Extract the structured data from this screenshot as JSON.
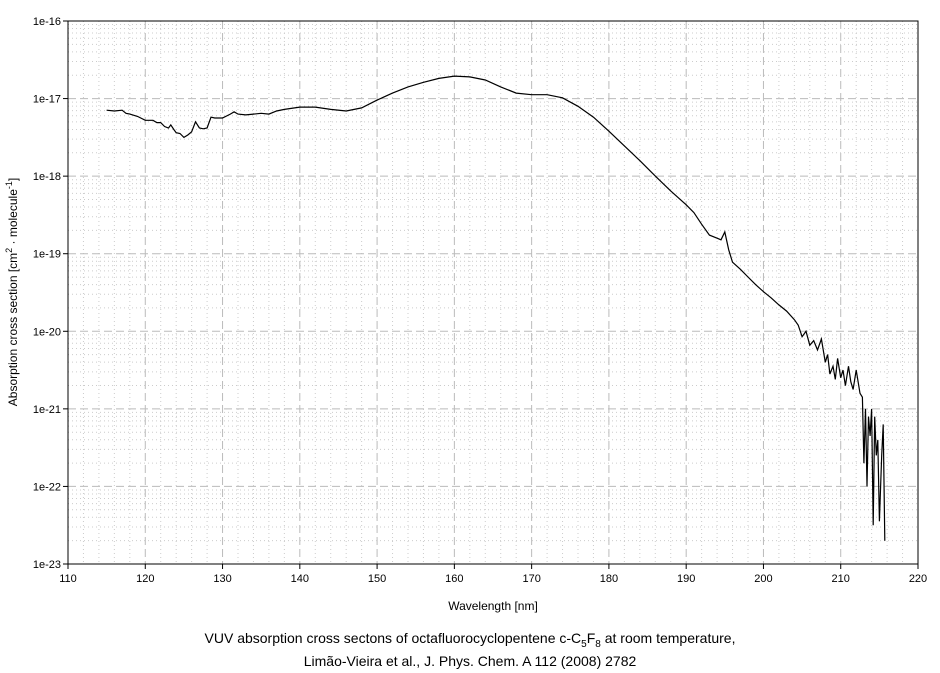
{
  "chart_data": {
    "type": "line",
    "xlabel": "Wavelength [nm]",
    "ylabel": "Absorption cross section [cm² · molecule⁻¹]",
    "ylabel_main": "Absorption cross section [cm",
    "ylabel_mid": " · molecule",
    "ylabel_end": "]",
    "xlim": [
      110,
      220
    ],
    "ylim_log10": [
      -23,
      -16
    ],
    "yscale": "log",
    "grid": true,
    "xticks": [
      "110",
      "120",
      "130",
      "140",
      "150",
      "160",
      "170",
      "180",
      "190",
      "200",
      "210",
      "220"
    ],
    "yticks": [
      "1e-16",
      "1e-17",
      "1e-18",
      "1e-19",
      "1e-20",
      "1e-21",
      "1e-22",
      "1e-23"
    ],
    "series": [
      {
        "name": "c-C5F8",
        "x": [
          115,
          116,
          117,
          117.5,
          118,
          119,
          120,
          121,
          121.5,
          122,
          122.5,
          123,
          123.3,
          123.7,
          124,
          124.5,
          125,
          125.5,
          126,
          126.5,
          127,
          127.5,
          128,
          128.5,
          129,
          130,
          131,
          131.5,
          132,
          133,
          134,
          135,
          136,
          137,
          138,
          140,
          142,
          144,
          146,
          148,
          150,
          152,
          154,
          156,
          158,
          160,
          162,
          164,
          166,
          168,
          170,
          172,
          174,
          176,
          178,
          180,
          182,
          184,
          186,
          188,
          190,
          191,
          192,
          193,
          194,
          194.5,
          195,
          195.5,
          196,
          197,
          198,
          199,
          200,
          201,
          202,
          203,
          204,
          204.5,
          205,
          205.5,
          206,
          206.5,
          207,
          207.5,
          208,
          208.3,
          208.6,
          209,
          209.3,
          209.6,
          210,
          210.3,
          210.6,
          211,
          211.3,
          211.6,
          212,
          212.5,
          212.8,
          213,
          213.2,
          213.4,
          213.6,
          213.8,
          214,
          214.2,
          214.4,
          214.6,
          214.8,
          215,
          215.3,
          215.5,
          215.7
        ],
        "log10_values": [
          -17.15,
          -17.16,
          -17.15,
          -17.19,
          -17.2,
          -17.23,
          -17.28,
          -17.28,
          -17.31,
          -17.31,
          -17.36,
          -17.38,
          -17.34,
          -17.4,
          -17.44,
          -17.45,
          -17.5,
          -17.47,
          -17.43,
          -17.3,
          -17.38,
          -17.39,
          -17.38,
          -17.24,
          -17.25,
          -17.25,
          -17.2,
          -17.17,
          -17.2,
          -17.21,
          -17.2,
          -17.19,
          -17.2,
          -17.16,
          -17.14,
          -17.11,
          -17.11,
          -17.14,
          -17.16,
          -17.12,
          -17.02,
          -16.93,
          -16.85,
          -16.79,
          -16.74,
          -16.71,
          -16.72,
          -16.76,
          -16.85,
          -16.93,
          -16.95,
          -16.95,
          -16.99,
          -17.1,
          -17.24,
          -17.42,
          -17.61,
          -17.8,
          -18.0,
          -18.19,
          -18.37,
          -18.47,
          -18.62,
          -18.76,
          -18.8,
          -18.82,
          -18.72,
          -18.95,
          -19.11,
          -19.2,
          -19.3,
          -19.4,
          -19.49,
          -19.57,
          -19.66,
          -19.74,
          -19.85,
          -19.92,
          -20.07,
          -20.0,
          -20.18,
          -20.12,
          -20.24,
          -20.1,
          -20.4,
          -20.3,
          -20.55,
          -20.45,
          -20.62,
          -20.35,
          -20.6,
          -20.5,
          -20.7,
          -20.45,
          -20.65,
          -20.75,
          -20.5,
          -20.8,
          -20.85,
          -21.7,
          -21.0,
          -22.0,
          -21.1,
          -21.35,
          -21.0,
          -22.5,
          -21.1,
          -21.6,
          -21.4,
          -22.45,
          -21.6,
          -21.2,
          -22.7,
          -21.7
        ]
      }
    ]
  },
  "caption": {
    "line1_pre": "VUV absorption cross sectons of octafluorocyclopentene c-C",
    "sub1": "5",
    "mid": "F",
    "sub2": "8",
    "line1_post": " at room temperature,",
    "line2": "Limão-Vieira et al., J. Phys. Chem. A 112 (2008) 2782"
  }
}
